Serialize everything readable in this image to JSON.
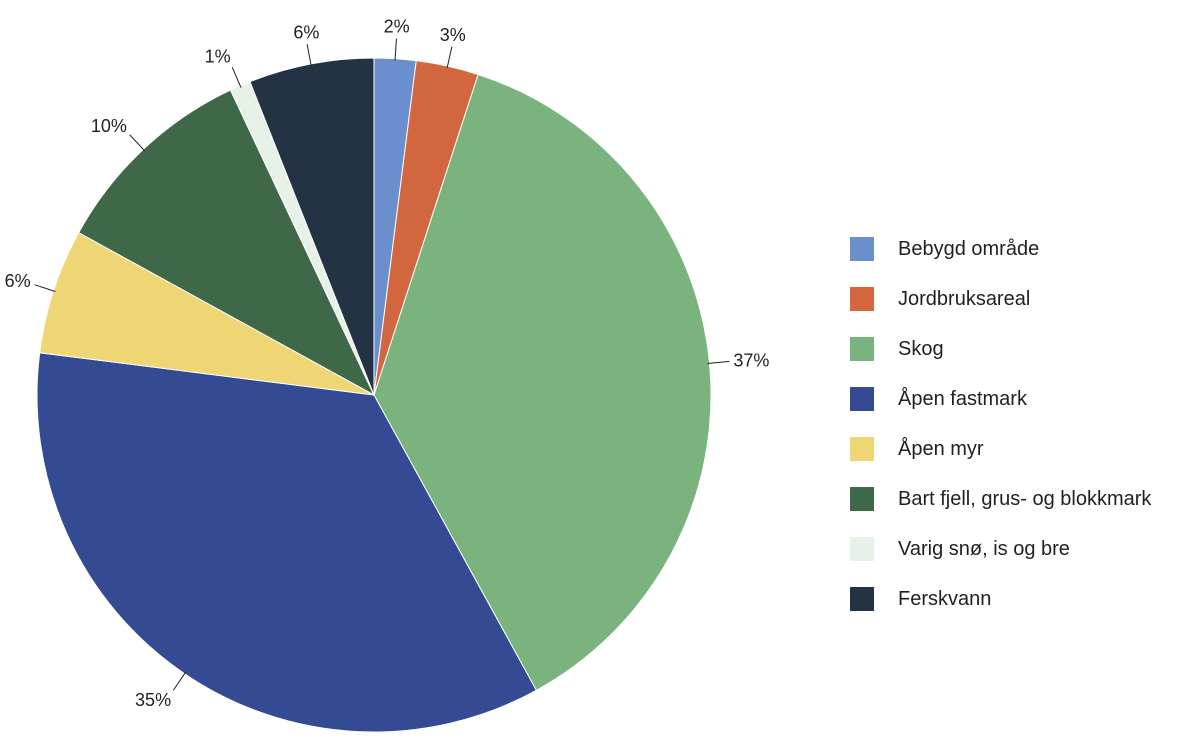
{
  "chart_data": {
    "type": "pie",
    "title": "",
    "slices": [
      {
        "label": "Bebygd område",
        "value": 2,
        "value_label": "2%",
        "color": "#6a8fcc"
      },
      {
        "label": "Jordbruksareal",
        "value": 3,
        "value_label": "3%",
        "color": "#d2663f"
      },
      {
        "label": "Skog",
        "value": 37,
        "value_label": "37%",
        "color": "#7ab37d"
      },
      {
        "label": "Åpen fastmark",
        "value": 35,
        "value_label": "35%",
        "color": "#344b94"
      },
      {
        "label": "Åpen myr",
        "value": 6,
        "value_label": "6%",
        "color": "#efd674"
      },
      {
        "label": "Bart fjell, grus- og blokkmark",
        "value": 10,
        "value_label": "10%",
        "color": "#3f6848"
      },
      {
        "label": "Varig snø, is og bre",
        "value": 1,
        "value_label": "1%",
        "color": "#e6f2e7"
      },
      {
        "label": "Ferskvann",
        "value": 6,
        "value_label": "6%",
        "color": "#233343"
      }
    ],
    "legend_position": "right"
  }
}
